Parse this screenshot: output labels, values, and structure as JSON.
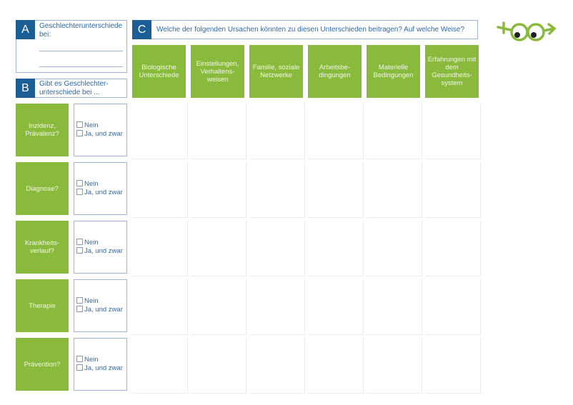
{
  "section_a": {
    "tag": "A",
    "text": "Geschlechterunterschiede bei:"
  },
  "section_b": {
    "tag": "B",
    "text": "Gibt es Geschlechter-unterschiede bei ..."
  },
  "section_c": {
    "tag": "C",
    "text": "Welche der folgenden Ursachen könnten zu diesen Unterschieden beitragen? Auf welche Weise?"
  },
  "columns": [
    "Biologische Unterschiede",
    "Einstellungen, Verhaltens-weisen",
    "Familie, soziale Netzwerke",
    "Arbeitsbe-dingungen",
    "Materielle Bedingungen",
    "Erfahrungen mit dem Gesundheits-system"
  ],
  "rows": [
    "Inzidenz, Prävalenz?",
    "Diagnose?",
    "Krankheits-verlauf?",
    "Therapie",
    "Prävention?"
  ],
  "options": {
    "no": "Nein",
    "yes": "Ja, und zwar"
  },
  "colors": {
    "blue": "#1c5e96",
    "green": "#8aba3c",
    "text": "#2f6aa6"
  },
  "logo": {
    "icon": "glasses-arrow-logo"
  }
}
